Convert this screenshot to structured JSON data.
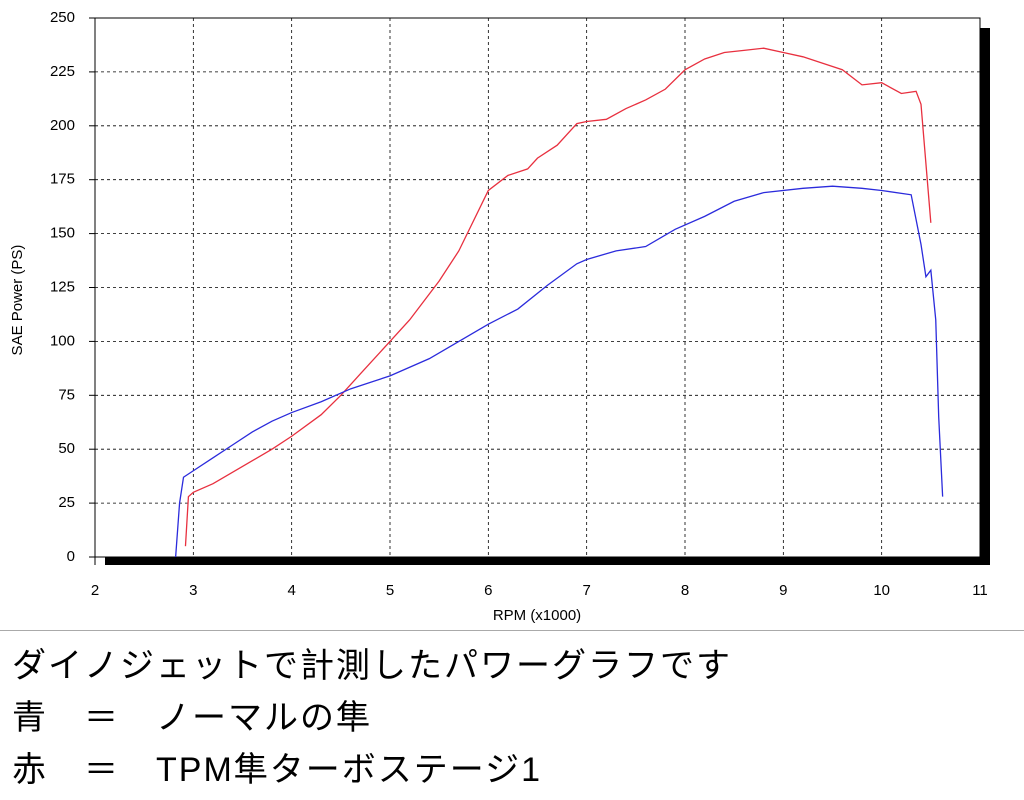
{
  "chart_data": {
    "type": "line",
    "xlabel": "RPM (x1000)",
    "ylabel": "SAE Power (PS)",
    "xlim": [
      2,
      11
    ],
    "xticks": [
      2,
      3,
      4,
      5,
      6,
      7,
      8,
      9,
      10,
      11
    ],
    "ylim": [
      0,
      250
    ],
    "yticks": [
      0,
      25,
      50,
      75,
      100,
      125,
      150,
      175,
      200,
      225,
      250
    ],
    "grid": true,
    "series": [
      {
        "color": "#e8303f",
        "x": [
          2.92,
          2.95,
          3.0,
          3.2,
          3.5,
          3.8,
          4.0,
          4.3,
          4.5,
          4.7,
          5.0,
          5.2,
          5.5,
          5.7,
          6.0,
          6.2,
          6.4,
          6.5,
          6.7,
          6.9,
          7.0,
          7.2,
          7.4,
          7.6,
          7.8,
          8.0,
          8.2,
          8.4,
          8.6,
          8.8,
          9.0,
          9.2,
          9.4,
          9.6,
          9.8,
          10.0,
          10.2,
          10.35,
          10.4,
          10.5
        ],
        "values": [
          5,
          28,
          30,
          34,
          42,
          50,
          56,
          66,
          75,
          85,
          100,
          110,
          128,
          142,
          170,
          177,
          180,
          185,
          191,
          201,
          202,
          203,
          208,
          212,
          217,
          226,
          231,
          234,
          235,
          236,
          234,
          232,
          229,
          226,
          219,
          220,
          215,
          216,
          210,
          155
        ]
      },
      {
        "color": "#2b2bdc",
        "x": [
          2.82,
          2.86,
          2.9,
          3.0,
          3.2,
          3.4,
          3.6,
          3.8,
          4.0,
          4.3,
          4.6,
          5.0,
          5.4,
          5.7,
          6.0,
          6.3,
          6.6,
          6.9,
          7.0,
          7.3,
          7.6,
          7.9,
          8.2,
          8.5,
          8.8,
          9.2,
          9.5,
          9.8,
          10.0,
          10.3,
          10.4,
          10.45,
          10.5,
          10.55,
          10.58,
          10.62
        ],
        "values": [
          0,
          25,
          37,
          40,
          46,
          52,
          58,
          63,
          67,
          72,
          78,
          84,
          92,
          100,
          108,
          115,
          126,
          136,
          138,
          142,
          144,
          152,
          158,
          165,
          169,
          171,
          172,
          171,
          170,
          168,
          145,
          130,
          133,
          110,
          65,
          28
        ]
      }
    ]
  },
  "caption": [
    "ダイノジェットで計測したパワーグラフです",
    "青　＝　ノーマルの隼",
    "赤　＝　TPM隼ターボステージ1"
  ]
}
